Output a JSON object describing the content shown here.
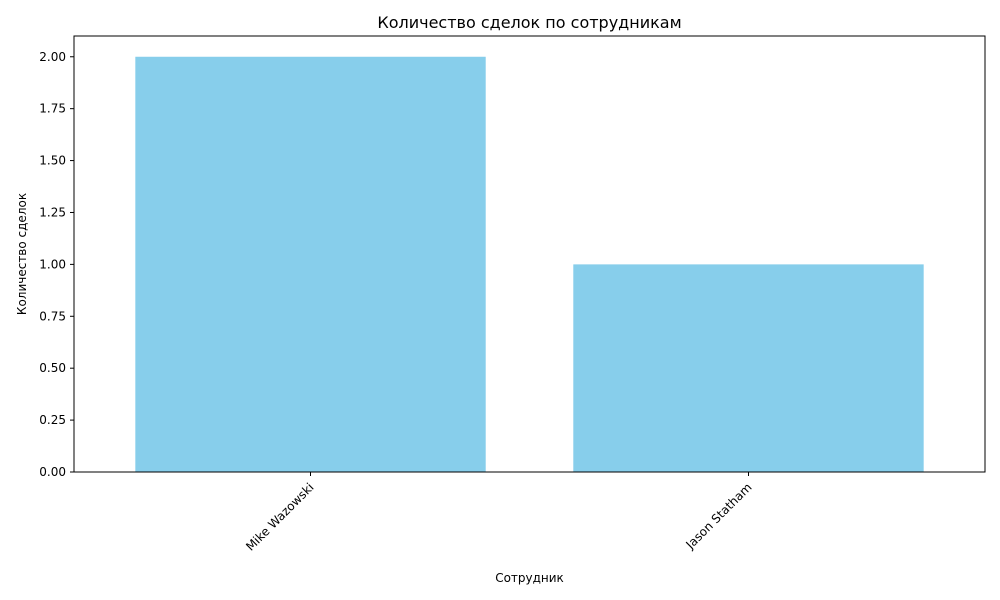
{
  "chart_data": {
    "type": "bar",
    "title": "Количество сделок по сотрудникам",
    "xlabel": "Сотрудник",
    "ylabel": "Количество сделок",
    "categories": [
      "Mike Wazowski",
      "Jason Statham"
    ],
    "values": [
      2,
      1
    ],
    "ylim": [
      0,
      2.1
    ],
    "yticks": [
      "0.00",
      "0.25",
      "0.50",
      "0.75",
      "1.00",
      "1.25",
      "1.50",
      "1.75",
      "2.00"
    ],
    "bar_color": "#87ceeb",
    "grid": false,
    "legend": "none"
  }
}
